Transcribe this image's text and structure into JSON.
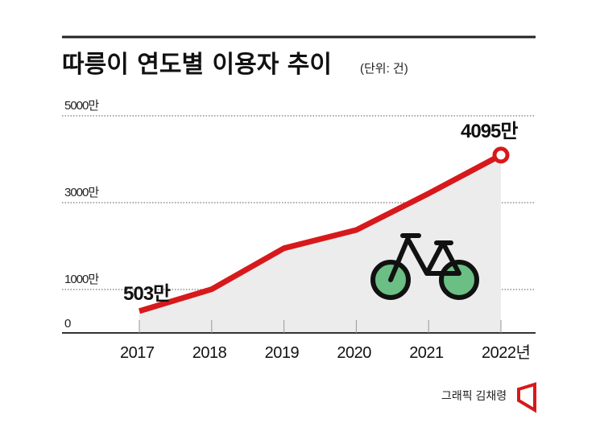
{
  "chart_data": {
    "type": "line",
    "title": "따릉이 연도별 이용자 추이",
    "unit": "(단위: 건)",
    "categories": [
      "2017",
      "2018",
      "2019",
      "2020",
      "2021",
      "2022년"
    ],
    "values": [
      503,
      1006,
      1950,
      2370,
      3210,
      4095
    ],
    "value_unit": "만",
    "data_labels": [
      {
        "index": 0,
        "text": "503만"
      },
      {
        "index": 5,
        "text": "4095만"
      }
    ],
    "yticks": [
      {
        "value": 0,
        "label": "0"
      },
      {
        "value": 1000,
        "label": "1000만"
      },
      {
        "value": 3000,
        "label": "3000만"
      },
      {
        "value": 5000,
        "label": "5000만"
      }
    ],
    "ylim": [
      0,
      5000
    ],
    "grid": true,
    "colors": {
      "line": "#d7191c",
      "fill": "#ececec",
      "wheel": "#6cbf84"
    },
    "icon": "bicycle-icon"
  },
  "credit": "그래픽 김채령"
}
